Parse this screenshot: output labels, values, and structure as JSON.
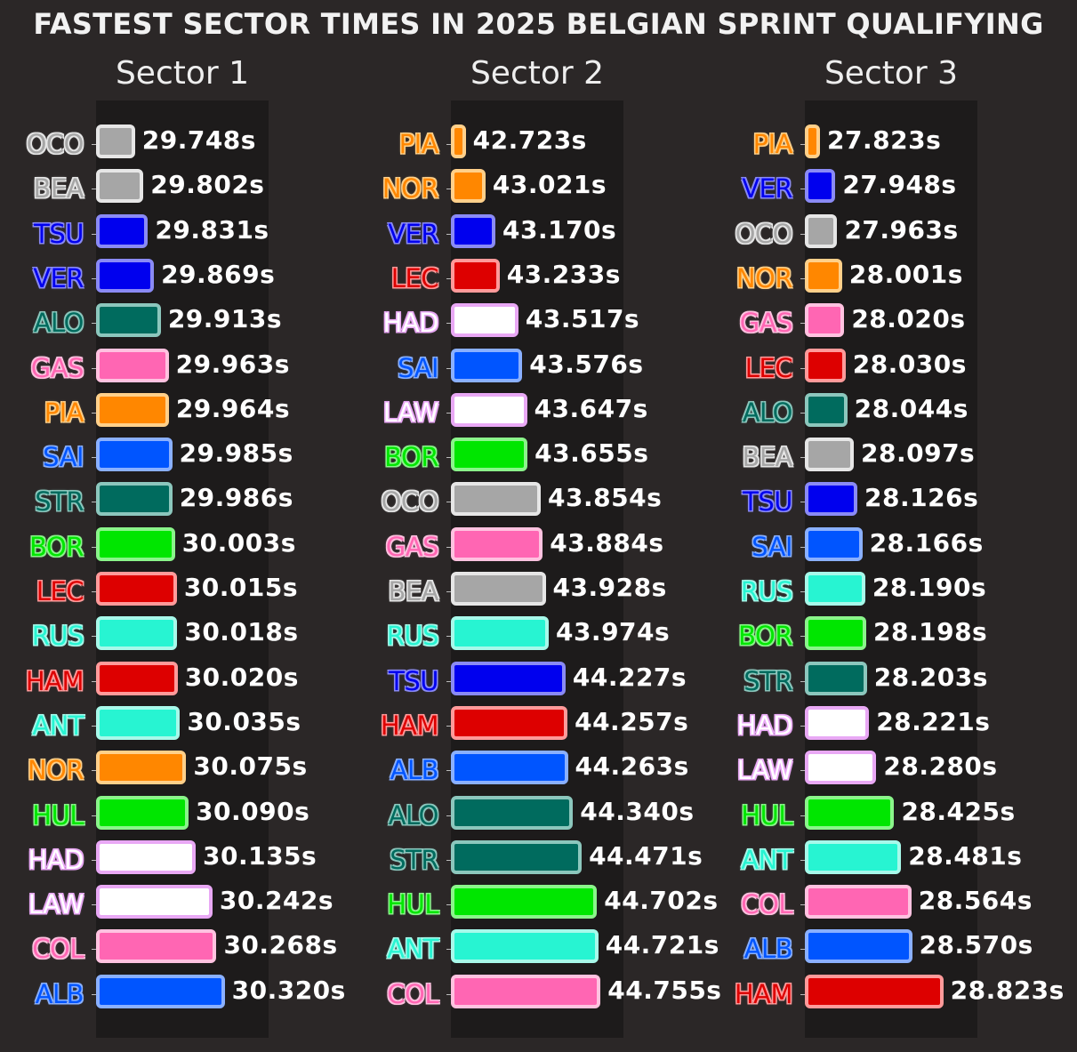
{
  "title": "FASTEST SECTOR TIMES IN 2025 BELGIAN SPRINT QUALIFYING",
  "colors": {
    "papaya": "#ff8700",
    "blue": "#0000ee",
    "grey": "#a6a6a6",
    "pink": "#ff66b3",
    "red": "#dd0000",
    "green_teal": "#006b5e",
    "white": "#ffffff",
    "sky": "#0055ff",
    "lime": "#00e600",
    "turquoise": "#27f4d2"
  },
  "chart_data": [
    {
      "type": "bar",
      "title": "Sector 1",
      "orientation": "horizontal",
      "unit": "s",
      "categories": [
        "OCO",
        "BEA",
        "TSU",
        "VER",
        "ALO",
        "GAS",
        "PIA",
        "SAI",
        "STR",
        "BOR",
        "LEC",
        "RUS",
        "HAM",
        "ANT",
        "NOR",
        "HUL",
        "HAD",
        "LAW",
        "COL",
        "ALB"
      ],
      "values": [
        29.748,
        29.802,
        29.831,
        29.869,
        29.913,
        29.963,
        29.964,
        29.985,
        29.986,
        30.003,
        30.015,
        30.018,
        30.02,
        30.035,
        30.075,
        30.09,
        30.135,
        30.242,
        30.268,
        30.32
      ],
      "labels": [
        "29.748s",
        "29.802s",
        "29.831s",
        "29.869s",
        "29.913s",
        "29.963s",
        "29.964s",
        "29.985s",
        "29.986s",
        "30.003s",
        "30.015s",
        "30.018s",
        "30.020s",
        "30.035s",
        "30.075s",
        "30.090s",
        "30.135s",
        "30.242s",
        "30.268s",
        "30.320s"
      ],
      "xlim": [
        29.5,
        30.6
      ]
    },
    {
      "type": "bar",
      "title": "Sector 2",
      "orientation": "horizontal",
      "unit": "s",
      "categories": [
        "PIA",
        "NOR",
        "VER",
        "LEC",
        "HAD",
        "SAI",
        "LAW",
        "BOR",
        "OCO",
        "GAS",
        "BEA",
        "RUS",
        "TSU",
        "HAM",
        "ALB",
        "ALO",
        "STR",
        "HUL",
        "ANT",
        "COL"
      ],
      "values": [
        42.723,
        43.021,
        43.17,
        43.233,
        43.517,
        43.576,
        43.647,
        43.655,
        43.854,
        43.884,
        43.928,
        43.974,
        44.227,
        44.257,
        44.263,
        44.34,
        44.471,
        44.702,
        44.721,
        44.755
      ],
      "labels": [
        "42.723s",
        "43.021s",
        "43.170s",
        "43.233s",
        "43.517s",
        "43.576s",
        "43.647s",
        "43.655s",
        "43.854s",
        "43.884s",
        "43.928s",
        "43.974s",
        "44.227s",
        "44.257s",
        "44.263s",
        "44.340s",
        "44.471s",
        "44.702s",
        "44.721s",
        "44.755s"
      ],
      "xlim": [
        42.5,
        45.1
      ]
    },
    {
      "type": "bar",
      "title": "Sector 3",
      "orientation": "horizontal",
      "unit": "s",
      "categories": [
        "PIA",
        "VER",
        "OCO",
        "NOR",
        "GAS",
        "LEC",
        "ALO",
        "BEA",
        "TSU",
        "SAI",
        "RUS",
        "BOR",
        "STR",
        "HAD",
        "LAW",
        "HUL",
        "ANT",
        "COL",
        "ALB",
        "HAM"
      ],
      "values": [
        27.823,
        27.948,
        27.963,
        28.001,
        28.02,
        28.03,
        28.044,
        28.097,
        28.126,
        28.166,
        28.19,
        28.198,
        28.203,
        28.221,
        28.28,
        28.425,
        28.481,
        28.564,
        28.57,
        28.823
      ],
      "labels": [
        "27.823s",
        "27.948s",
        "27.963s",
        "28.001s",
        "28.020s",
        "28.030s",
        "28.044s",
        "28.097s",
        "28.126s",
        "28.166s",
        "28.190s",
        "28.198s",
        "28.203s",
        "28.221s",
        "28.280s",
        "28.425s",
        "28.481s",
        "28.564s",
        "28.570s",
        "28.823s"
      ],
      "xlim": [
        27.7,
        29.1
      ]
    }
  ],
  "team_colors": {
    "OCO": "#a6a6a6",
    "BEA": "#a6a6a6",
    "TSU": "#0000ee",
    "VER": "#0000ee",
    "ALO": "#006b5e",
    "STR": "#006b5e",
    "GAS": "#ff66b3",
    "COL": "#ff66b3",
    "PIA": "#ff8700",
    "NOR": "#ff8700",
    "SAI": "#0055ff",
    "ALB": "#0055ff",
    "BOR": "#00e600",
    "HUL": "#00e600",
    "LEC": "#dd0000",
    "HAM": "#dd0000",
    "RUS": "#27f4d2",
    "ANT": "#27f4d2",
    "HAD": "#ffffff",
    "LAW": "#ffffff"
  },
  "team_glow": {
    "OCO": "#e6e6e6",
    "BEA": "#e6e6e6",
    "TSU": "#8a8af5",
    "VER": "#8a8af5",
    "ALO": "#8cc7bd",
    "STR": "#8cc7bd",
    "GAS": "#ffc2e0",
    "COL": "#ffc2e0",
    "PIA": "#ffd08a",
    "NOR": "#ffd08a",
    "SAI": "#8ab0ff",
    "ALB": "#8ab0ff",
    "BOR": "#8af58a",
    "HUL": "#8af58a",
    "LEC": "#ff9a9a",
    "HAM": "#ff9a9a",
    "RUS": "#a7f9ea",
    "ANT": "#a7f9ea",
    "HAD": "#e9a8f5",
    "LAW": "#e9a8f5"
  }
}
